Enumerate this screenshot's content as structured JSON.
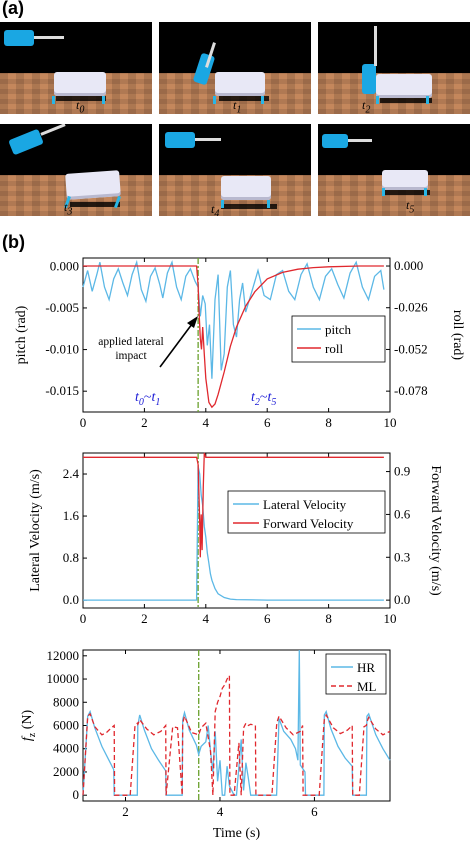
{
  "figure": {
    "label_a": "(a)",
    "label_b": "(b)",
    "frames": [
      {
        "label": "t",
        "sub": "0"
      },
      {
        "label": "t",
        "sub": "1"
      },
      {
        "label": "t",
        "sub": "2"
      },
      {
        "label": "t",
        "sub": "3"
      },
      {
        "label": "t",
        "sub": "4"
      },
      {
        "label": "t",
        "sub": "5"
      }
    ]
  },
  "chart_data": [
    {
      "type": "line",
      "xlabel": "",
      "ylabel_left": "pitch (rad)",
      "ylabel_right": "roll (rad)",
      "xlim": [
        0,
        10
      ],
      "ylim_left": [
        -0.0175,
        0.001
      ],
      "ylim_right": [
        -0.091,
        0.005
      ],
      "x_ticks": [
        "0",
        "2",
        "4",
        "6",
        "8",
        "10"
      ],
      "y_ticks_left": [
        "0.000",
        "-0.005",
        "-0.010",
        "-0.015"
      ],
      "y_ticks_right": [
        "0.000",
        "-0.026",
        "-0.052",
        "-0.078"
      ],
      "legend_position": "right",
      "annotations": {
        "impact_line_x": 3.75,
        "impact_text_1": "applied lateral",
        "impact_text_2": "impact",
        "phase_1": {
          "t": "t",
          "sub1": "0",
          "sep": "~",
          "t2": "t",
          "sub2": "1"
        },
        "phase_2": {
          "t": "t",
          "sub1": "2",
          "sep": "~",
          "t2": "t",
          "sub2": "5"
        }
      },
      "series": [
        {
          "name": "pitch",
          "color": "#5cb8e6",
          "axis": "left",
          "x": [
            0,
            0.15,
            0.3,
            0.45,
            0.55,
            0.7,
            0.85,
            1.0,
            1.15,
            1.3,
            1.45,
            1.6,
            1.75,
            1.9,
            2.05,
            2.2,
            2.35,
            2.5,
            2.6,
            2.75,
            2.9,
            3.05,
            3.2,
            3.35,
            3.5,
            3.65,
            3.75,
            3.82,
            3.9,
            3.98,
            4.05,
            4.12,
            4.2,
            4.3,
            4.4,
            4.5,
            4.6,
            4.7,
            4.8,
            4.9,
            5.0,
            5.1,
            5.2,
            5.3,
            5.5,
            5.7,
            5.9,
            6.1,
            6.3,
            6.5,
            6.7,
            6.9,
            7.1,
            7.3,
            7.5,
            7.7,
            7.9,
            8.1,
            8.3,
            8.5,
            8.7,
            8.9,
            9.1,
            9.3,
            9.5,
            9.7,
            9.8
          ],
          "values": [
            -0.0025,
            -0.0005,
            -0.003,
            -0.001,
            0.0005,
            -0.0025,
            -0.004,
            -0.0015,
            -0.0003,
            -0.002,
            -0.0035,
            -0.001,
            0.0005,
            -0.0028,
            -0.0042,
            -0.0012,
            -0.0002,
            -0.0022,
            -0.0038,
            -0.0008,
            0.0005,
            -0.0025,
            -0.004,
            -0.0012,
            -0.0003,
            -0.0018,
            -0.0025,
            -0.006,
            -0.0035,
            -0.0045,
            -0.0095,
            -0.007,
            -0.0135,
            -0.004,
            -0.001,
            -0.0125,
            -0.0105,
            -0.0025,
            -0.0005,
            -0.007,
            -0.0085,
            -0.004,
            -0.002,
            -0.0055,
            -0.003,
            -0.0005,
            -0.0035,
            -0.004,
            -0.001,
            -0.0005,
            -0.003,
            -0.004,
            -0.001,
            0.0003,
            -0.0025,
            -0.004,
            -0.0012,
            -0.0003,
            -0.0022,
            -0.0038,
            -0.0008,
            0.0005,
            -0.0025,
            -0.004,
            -0.0012,
            -0.0005,
            -0.0028
          ]
        },
        {
          "name": "roll",
          "color": "#e0282e",
          "axis": "right",
          "x": [
            0,
            1,
            2,
            3,
            3.7,
            3.75,
            3.78,
            3.82,
            3.86,
            3.9,
            3.95,
            4.0,
            4.1,
            4.2,
            4.3,
            4.4,
            4.6,
            4.8,
            5.0,
            5.3,
            5.6,
            6.0,
            6.5,
            7.0,
            7.5,
            8,
            9,
            9.8
          ],
          "values": [
            0.0,
            0.0,
            0.0,
            0.0,
            0.0,
            -0.012,
            -0.028,
            -0.045,
            -0.052,
            -0.038,
            -0.055,
            -0.07,
            -0.085,
            -0.088,
            -0.086,
            -0.08,
            -0.066,
            -0.05,
            -0.038,
            -0.025,
            -0.016,
            -0.008,
            -0.004,
            -0.002,
            -0.001,
            -0.0005,
            0.0,
            0.0
          ]
        }
      ]
    },
    {
      "type": "line",
      "xlabel": "",
      "ylabel_left": "Lateral Velocity (m/s)",
      "ylabel_right": "Forward Velocity (m/s)",
      "xlim": [
        0,
        10
      ],
      "ylim_left": [
        -0.15,
        2.8
      ],
      "ylim_right": [
        -0.055,
        1.03
      ],
      "x_ticks": [
        "0",
        "2",
        "4",
        "6",
        "8",
        "10"
      ],
      "y_ticks_left": [
        "0.0",
        "0.8",
        "1.6",
        "2.4"
      ],
      "y_ticks_right": [
        "0.0",
        "0.3",
        "0.6",
        "0.9"
      ],
      "legend_position": "right",
      "series": [
        {
          "name": "Lateral Velocity",
          "color": "#5cb8e6",
          "axis": "left",
          "x": [
            0,
            1,
            2,
            3,
            3.7,
            3.75,
            3.8,
            3.85,
            3.9,
            3.95,
            4.0,
            4.05,
            4.1,
            4.15,
            4.2,
            4.3,
            4.4,
            4.6,
            4.8,
            5.0,
            6,
            7,
            8,
            9,
            9.8
          ],
          "values": [
            0,
            0,
            0,
            0,
            0,
            2.55,
            2.4,
            2.0,
            1.8,
            1.4,
            1.2,
            0.9,
            0.7,
            0.5,
            0.38,
            0.22,
            0.12,
            0.05,
            0.02,
            0.01,
            0,
            0,
            0,
            0,
            0
          ]
        },
        {
          "name": "Forward Velocity",
          "color": "#e0282e",
          "axis": "right",
          "x": [
            0,
            1,
            2,
            3,
            3.7,
            3.75,
            3.8,
            3.82,
            3.85,
            3.88,
            3.92,
            3.95,
            4.0,
            4.05,
            4.1,
            4.2,
            4.5,
            5,
            6,
            7,
            8,
            9,
            9.8
          ],
          "values": [
            1.0,
            1.0,
            1.0,
            1.0,
            1.0,
            0.95,
            0.55,
            0.3,
            0.6,
            0.35,
            0.8,
            1.03,
            1.0,
            1.0,
            1.0,
            1.0,
            1.0,
            1.0,
            1.0,
            1.0,
            1.0,
            1.0,
            1.0
          ]
        }
      ]
    },
    {
      "type": "line",
      "xlabel": "Time (s)",
      "ylabel_left": "fz (N)",
      "ylabel_main": "f",
      "ylabel_sub": "z",
      "ylabel_unit": " (N)",
      "xlim": [
        1.1,
        7.6
      ],
      "ylim_left": [
        -500,
        12500
      ],
      "x_ticks": [
        "2",
        "4",
        "6"
      ],
      "y_ticks_left": [
        "0",
        "2000",
        "4000",
        "6000",
        "8000",
        "10000",
        "12000"
      ],
      "legend_position": "top-right",
      "impact_line_x": 3.55,
      "series": [
        {
          "name": "HR",
          "color": "#5cb8e6",
          "axis": "left",
          "x": [
            1.1,
            1.2,
            1.25,
            1.35,
            1.5,
            1.65,
            1.75,
            1.76,
            2.25,
            2.26,
            2.3,
            2.4,
            2.55,
            2.7,
            2.85,
            2.86,
            3.2,
            3.21,
            3.25,
            3.35,
            3.5,
            3.55,
            3.6,
            3.7,
            3.75,
            3.8,
            3.85,
            3.9,
            3.95,
            4.0,
            4.05,
            4.1,
            4.15,
            4.2,
            4.3,
            4.35,
            4.45,
            4.5,
            4.55,
            4.6,
            4.65,
            4.75,
            5.2,
            5.25,
            5.35,
            5.5,
            5.6,
            5.65,
            5.68,
            5.7,
            5.8,
            5.81,
            6.2,
            6.21,
            6.25,
            6.35,
            6.5,
            6.65,
            6.8,
            6.81,
            7.1,
            7.11,
            7.15,
            7.3,
            7.45,
            7.6
          ],
          "values": [
            0,
            6800,
            7200,
            5800,
            4200,
            3000,
            2200,
            0,
            0,
            6000,
            6900,
            5600,
            4000,
            3000,
            2100,
            0,
            0,
            6500,
            7100,
            5600,
            4300,
            3500,
            4200,
            4600,
            6000,
            3800,
            2000,
            5500,
            1200,
            3000,
            0,
            0,
            2500,
            800,
            0,
            0,
            4800,
            400,
            2800,
            1500,
            0,
            0,
            0,
            6600,
            5500,
            4800,
            4000,
            3000,
            12500,
            2600,
            2000,
            0,
            0,
            6900,
            7200,
            5700,
            4200,
            3200,
            2500,
            0,
            0,
            6800,
            7000,
            5200,
            4000,
            3000
          ]
        },
        {
          "name": "ML",
          "color": "#e0282e",
          "axis": "left",
          "x": [
            1.1,
            1.2,
            1.25,
            1.35,
            1.5,
            1.6,
            1.7,
            1.76,
            1.77,
            1.9,
            2.1,
            2.2,
            2.25,
            2.26,
            2.3,
            2.45,
            2.6,
            2.75,
            2.85,
            2.86,
            3.0,
            3.1,
            3.2,
            3.21,
            3.25,
            3.4,
            3.55,
            3.6,
            3.7,
            3.8,
            3.85,
            3.9,
            3.95,
            4.0,
            4.05,
            4.1,
            4.15,
            4.2,
            4.21,
            4.3,
            4.4,
            4.45,
            4.5,
            4.55,
            4.6,
            4.65,
            4.75,
            4.76,
            4.9,
            5.1,
            5.2,
            5.21,
            5.25,
            5.4,
            5.55,
            5.7,
            5.75,
            5.76,
            5.9,
            6.1,
            6.2,
            6.21,
            6.25,
            6.4,
            6.55,
            6.7,
            6.8,
            6.81,
            6.95,
            7.05,
            7.1,
            7.11,
            7.15,
            7.3,
            7.45,
            7.6
          ],
          "values": [
            0,
            6800,
            7000,
            5900,
            5200,
            5400,
            5800,
            6000,
            0,
            0,
            0,
            6000,
            6200,
            6100,
            6500,
            5700,
            5200,
            5500,
            6000,
            0,
            5900,
            5800,
            0,
            6200,
            6800,
            5400,
            5200,
            5800,
            6200,
            3800,
            0,
            7200,
            8000,
            8500,
            9200,
            9500,
            10000,
            10300,
            0,
            0,
            4500,
            0,
            5800,
            6200,
            6000,
            6100,
            6000,
            0,
            0,
            0,
            6000,
            6300,
            6800,
            5800,
            5200,
            5500,
            6000,
            0,
            0,
            0,
            6100,
            6500,
            6900,
            5800,
            5300,
            5600,
            6000,
            0,
            0,
            5900,
            6000,
            6300,
            6700,
            5700,
            5200,
            5500
          ]
        }
      ]
    }
  ]
}
